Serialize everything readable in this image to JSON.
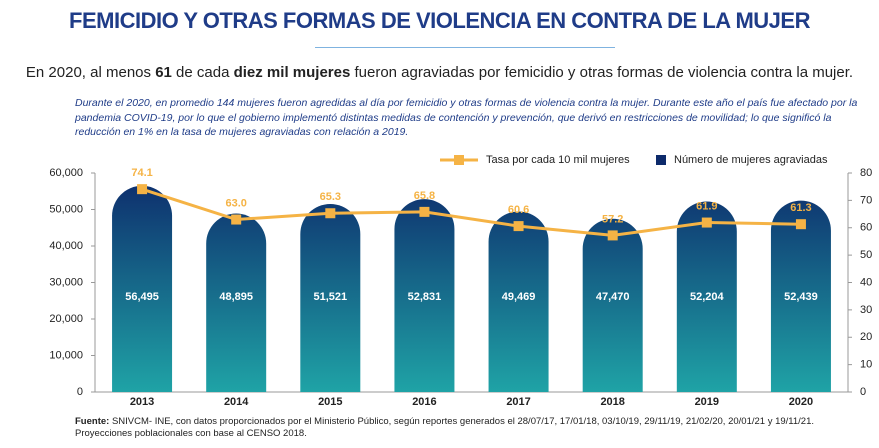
{
  "header": {
    "title": "FEMICIDIO Y OTRAS FORMAS DE VIOLENCIA EN CONTRA DE LA MUJER",
    "subtitle_parts": [
      "En 2020, al menos ",
      "61",
      " de cada ",
      "diez mil mujeres",
      " fueron agraviadas por femicidio y otras formas de violencia contra la mujer."
    ],
    "paragraph": "Durante el 2020, en promedio 144 mujeres fueron agredidas al día por femicidio y otras formas de violencia contra la mujer. Durante este año el país fue afectado por la pandemia COVID-19, por lo que el gobierno implementó distintas medidas de contención y prevención, que derivó en restricciones de movilidad; lo que significó la reducción en 1% en la tasa de mujeres agraviadas con relación a 2019."
  },
  "chart_data": {
    "type": "bar",
    "categories": [
      "2013",
      "2014",
      "2015",
      "2016",
      "2017",
      "2018",
      "2019",
      "2020"
    ],
    "series": [
      {
        "name": "Número de mujeres agraviadas",
        "color": "#0d2a6b",
        "color_bottom": "#1fa3a6",
        "values": [
          56495,
          48895,
          51521,
          52831,
          49469,
          47470,
          52204,
          52439
        ],
        "value_labels": [
          "56,495",
          "48,895",
          "51,521",
          "52,831",
          "49,469",
          "47,470",
          "52,204",
          "52,439"
        ]
      },
      {
        "name": "Tasa por cada 10 mil mujeres",
        "color": "#f5b345",
        "type": "line",
        "axis": "y2",
        "values": [
          74.1,
          63.0,
          65.3,
          65.8,
          60.6,
          57.2,
          61.9,
          61.3
        ],
        "value_labels": [
          "74.1",
          "63.0",
          "65.3",
          "65.8",
          "60.6",
          "57.2",
          "61.9",
          "61.3"
        ]
      }
    ],
    "ylim": [
      0,
      60000
    ],
    "yticks": [
      0,
      {
        "value": 10000,
        "label": "10,000"
      },
      {
        "value": 20000,
        "label": "20,000"
      },
      {
        "value": 30000,
        "label": "30,000"
      },
      {
        "value": 40000,
        "label": "40,000"
      },
      {
        "value": 50000,
        "label": "50,000"
      },
      {
        "value": 60000,
        "label": "60,000"
      }
    ],
    "y2lim": [
      0,
      80
    ],
    "y2ticks": [
      0,
      10,
      20,
      30,
      40,
      50,
      60,
      70,
      80
    ],
    "legend": "top-right"
  },
  "footer": {
    "source_label": "Fuente:",
    "source": " SNIVCM- INE, con datos proporcionados por el Ministerio Público, según reportes generados el 28/07/17, 17/01/18, 03/10/19, 29/11/19, 21/02/20, 20/01/21 y 19/11/21.",
    "source_2": "Proyecciones poblacionales con base al CENSO 2018."
  }
}
